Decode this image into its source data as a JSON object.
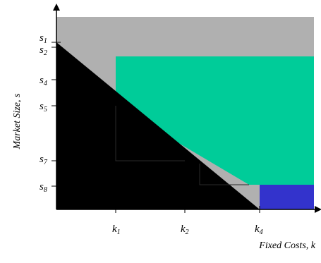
{
  "axes": {
    "y_title": "Market Size, s",
    "x_title": "Fixed Costs, k"
  },
  "y_ticks": [
    {
      "id": "s1",
      "base": "s",
      "sub": "1"
    },
    {
      "id": "s2",
      "base": "s",
      "sub": "2"
    },
    {
      "id": "s4",
      "base": "s",
      "sub": "4"
    },
    {
      "id": "s5",
      "base": "s",
      "sub": "5"
    },
    {
      "id": "s7",
      "base": "s",
      "sub": "7"
    },
    {
      "id": "s8",
      "base": "s",
      "sub": "8"
    }
  ],
  "x_ticks": [
    {
      "id": "k1",
      "base": "k",
      "sub": "1"
    },
    {
      "id": "k2",
      "base": "k",
      "sub": "2"
    },
    {
      "id": "k4",
      "base": "k",
      "sub": "4"
    }
  ],
  "colors": {
    "gray_region": "#b0b0b0",
    "green_region": "#00cc99",
    "blue_region": "#3333cc",
    "black_region": "#000000",
    "axis": "#000000"
  }
}
